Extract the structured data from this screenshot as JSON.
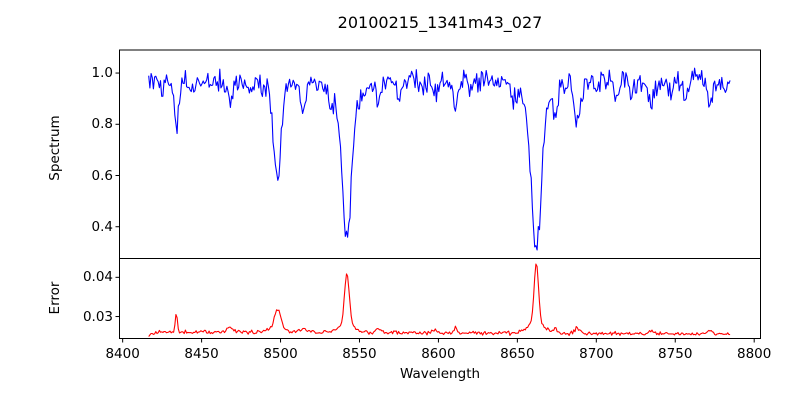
{
  "chart_data": {
    "type": "line",
    "title": "20100215_1341m43_027",
    "xlabel": "Wavelength",
    "xlim": [
      8398,
      8804
    ],
    "grid": false,
    "legend": "none",
    "x_ticks": [
      {
        "label": "8400",
        "value": 8400
      },
      {
        "label": "8450",
        "value": 8450
      },
      {
        "label": "8500",
        "value": 8500
      },
      {
        "label": "8550",
        "value": 8550
      },
      {
        "label": "8600",
        "value": 8600
      },
      {
        "label": "8650",
        "value": 8650
      },
      {
        "label": "8700",
        "value": 8700
      },
      {
        "label": "8750",
        "value": 8750
      },
      {
        "label": "8800",
        "value": 8800
      }
    ],
    "panels": [
      {
        "name": "spectrum",
        "ylabel": "Spectrum",
        "ylim": [
          0.276,
          1.09
        ],
        "y_ticks": [
          {
            "label": "1.0",
            "value": 1.0
          },
          {
            "label": "0.8",
            "value": 0.8
          },
          {
            "label": "0.6",
            "value": 0.6
          },
          {
            "label": "0.4",
            "value": 0.4
          }
        ],
        "series": {
          "color": "#0000ff",
          "x_start": 8416.5,
          "x_end": 8785,
          "x_step": 0.75,
          "continuum": 0.97,
          "noise_amplitude": 0.05,
          "noise_seed": 20100215,
          "line_columns": [
            "center",
            "depth",
            "sigma"
          ],
          "absorption_lines": [
            [
              8425,
              0.07,
              1.0
            ],
            [
              8434,
              0.2,
              1.2
            ],
            [
              8445,
              0.035,
              1.2
            ],
            [
              8468,
              0.08,
              1.8
            ],
            [
              8480,
              0.03,
              1.2
            ],
            [
              8498,
              0.33,
              2.2
            ],
            [
              8498,
              0.05,
              7
            ],
            [
              8514,
              0.12,
              1.4
            ],
            [
              8532,
              0.05,
              1.3
            ],
            [
              8542,
              0.52,
              2.8
            ],
            [
              8542,
              0.1,
              9
            ],
            [
              8562,
              0.09,
              1.6
            ],
            [
              8575,
              0.05,
              1.4
            ],
            [
              8590,
              0.04,
              1.3
            ],
            [
              8598,
              0.06,
              1.4
            ],
            [
              8611,
              0.11,
              1.3
            ],
            [
              8621,
              0.04,
              1.2
            ],
            [
              8648,
              0.04,
              1.4
            ],
            [
              8662,
              0.56,
              3.0
            ],
            [
              8662,
              0.1,
              9
            ],
            [
              8674,
              0.1,
              1.5
            ],
            [
              8688,
              0.17,
              1.9
            ],
            [
              8700,
              0.04,
              1.3
            ],
            [
              8713,
              0.06,
              1.5
            ],
            [
              8722,
              0.04,
              1.2
            ],
            [
              8735,
              0.1,
              1.6
            ],
            [
              8747,
              0.04,
              1.3
            ],
            [
              8757,
              0.06,
              1.4
            ],
            [
              8772,
              0.09,
              1.4
            ],
            [
              8781,
              0.04,
              1.2
            ]
          ],
          "key_readings": [
            {
              "x": 8434,
              "y": 0.77
            },
            {
              "x": 8498,
              "y": 0.6
            },
            {
              "x": 8542,
              "y": 0.34
            },
            {
              "x": 8662,
              "y": 0.31
            },
            {
              "x": 8600,
              "y": 0.97
            }
          ]
        }
      },
      {
        "name": "error",
        "ylabel": "Error",
        "ylim": [
          0.0244,
          0.0448
        ],
        "y_ticks": [
          {
            "label": "0.04",
            "value": 0.04
          },
          {
            "label": "0.03",
            "value": 0.03
          }
        ],
        "series": {
          "color": "#ff0000",
          "x_start": 8416.5,
          "x_end": 8785,
          "x_step": 0.75,
          "baseline": 0.0261,
          "baseline_slope_per_angstrom": -1.5e-06,
          "noise_amplitude": 0.0012,
          "noise_seed": 1341,
          "peak_columns": [
            "center",
            "height",
            "sigma"
          ],
          "peaks": [
            [
              8416,
              -0.0009,
              3
            ],
            [
              8434,
              0.0046,
              0.7
            ],
            [
              8468,
              0.0013,
              1.8
            ],
            [
              8498,
              0.0048,
              2.0
            ],
            [
              8498,
              0.0009,
              6
            ],
            [
              8514,
              0.0008,
              1.4
            ],
            [
              8542,
              0.013,
              1.5
            ],
            [
              8542,
              0.0022,
              5
            ],
            [
              8562,
              0.001,
              1.5
            ],
            [
              8598,
              0.0008,
              1.4
            ],
            [
              8611,
              0.0013,
              0.9
            ],
            [
              8662,
              0.0152,
              1.4
            ],
            [
              8662,
              0.0026,
              5
            ],
            [
              8674,
              0.001,
              1.5
            ],
            [
              8688,
              0.0013,
              1.8
            ],
            [
              8735,
              0.0008,
              1.5
            ],
            [
              8772,
              0.0008,
              1.3
            ]
          ],
          "key_readings": [
            {
              "x": 8434,
              "y": 0.0305
            },
            {
              "x": 8498,
              "y": 0.032
            },
            {
              "x": 8542,
              "y": 0.041
            },
            {
              "x": 8662,
              "y": 0.044
            },
            {
              "x": 8600,
              "y": 0.026
            }
          ]
        }
      }
    ],
    "colors": {
      "spectrum_line": "#0000ff",
      "error_line": "#ff0000",
      "axis": "#000000",
      "background": "#ffffff"
    }
  }
}
